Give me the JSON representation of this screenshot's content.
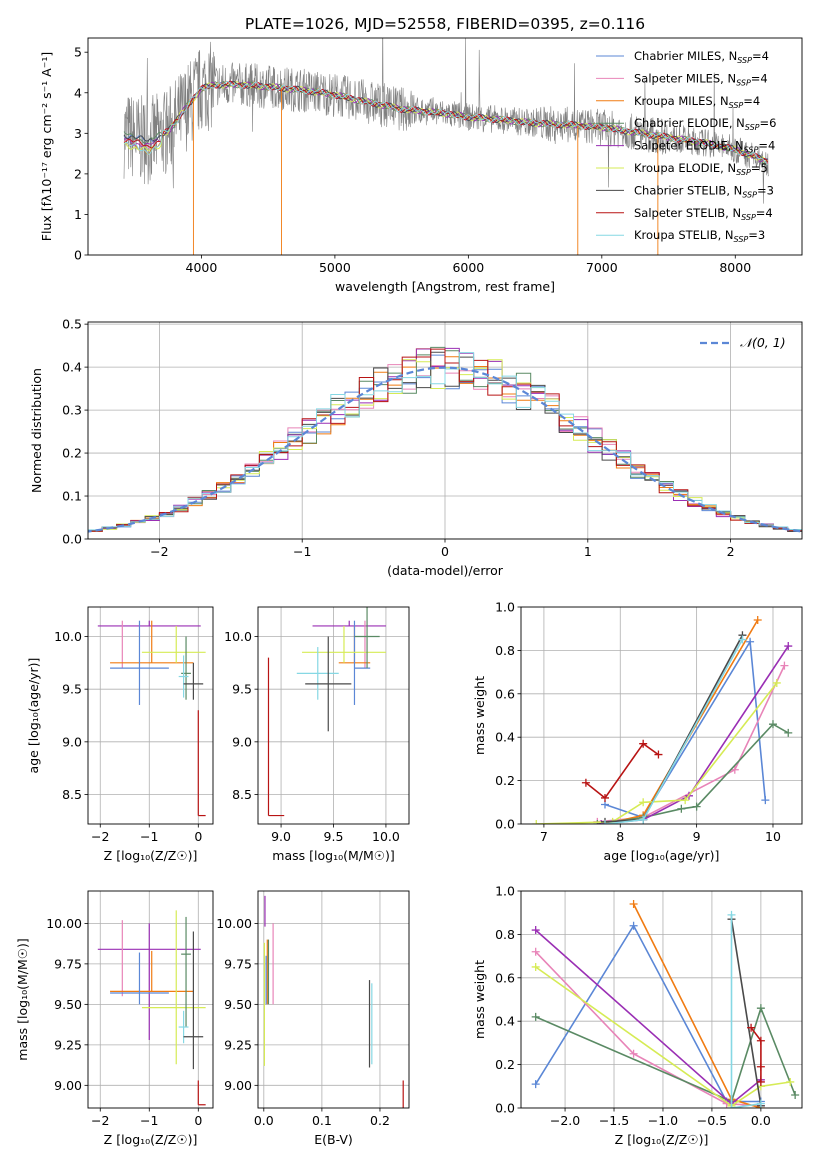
{
  "title": "PLATE=1026, MJD=52558, FIBERID=0395, z=0.116",
  "colors": {
    "chabrier_miles": "#5b87d6",
    "salpeter_miles": "#e884b8",
    "kroupa_miles": "#f07b12",
    "chabrier_elodie": "#5a8a64",
    "salpeter_elodie": "#9a2fb4",
    "kroupa_elodie": "#d6eb55",
    "chabrier_stelib": "#4a4a4a",
    "salpeter_stelib": "#b81414",
    "kroupa_stelib": "#86d8e4",
    "data": "#808080",
    "normal": "#5b87d6"
  },
  "chart_data": [
    {
      "id": "spectrum",
      "type": "line",
      "xlabel": "wavelength [Angstrom, rest frame]",
      "ylabel": "Flux [fλ10⁻¹⁷ erg cm⁻² s⁻¹ A⁻¹]",
      "xlim": [
        3150,
        8500
      ],
      "ylim": [
        0,
        5.35
      ],
      "xticks": [
        4000,
        5000,
        6000,
        7000,
        8000
      ],
      "yticks": [
        0,
        1,
        2,
        3,
        4,
        5
      ],
      "grid": false,
      "legend_position": "top-right",
      "legend": [
        {
          "pre": "Chabrier MILES, N",
          "sub": "SSP",
          "post": "=4",
          "color": "#5b87d6"
        },
        {
          "pre": "Salpeter MILES, N",
          "sub": "SSP",
          "post": "=4",
          "color": "#e884b8"
        },
        {
          "pre": "Kroupa MILES, N",
          "sub": "SSP",
          "post": "=4",
          "color": "#f07b12"
        },
        {
          "pre": "Chabrier ELODIE, N",
          "sub": "SSP",
          "post": "=6",
          "color": "#5a8a64"
        },
        {
          "pre": "Salpeter ELODIE, N",
          "sub": "SSP",
          "post": "=4",
          "color": "#9a2fb4"
        },
        {
          "pre": "Kroupa ELODIE, N",
          "sub": "SSP",
          "post": "=5",
          "color": "#d6eb55"
        },
        {
          "pre": "Chabrier STELIB, N",
          "sub": "SSP",
          "post": "=3",
          "color": "#4a4a4a"
        },
        {
          "pre": "Salpeter STELIB, N",
          "sub": "SSP",
          "post": "=4",
          "color": "#b81414"
        },
        {
          "pre": "Kroupa STELIB, N",
          "sub": "SSP",
          "post": "=3",
          "color": "#86d8e4"
        }
      ],
      "model_continuum": {
        "x": [
          3400,
          3600,
          3750,
          3900,
          4000,
          4100,
          4300,
          4500,
          4800,
          5000,
          5200,
          5500,
          5800,
          6000,
          6200,
          6500,
          6800,
          7000,
          7200,
          7500,
          7800,
          8000,
          8250
        ],
        "y": [
          3.0,
          2.8,
          3.05,
          3.7,
          4.1,
          4.2,
          4.2,
          4.15,
          4.05,
          3.95,
          3.8,
          3.6,
          3.5,
          3.4,
          3.35,
          3.25,
          3.2,
          3.15,
          3.05,
          2.9,
          2.75,
          2.6,
          2.3
        ]
      },
      "model_drops": [
        3940,
        4600,
        6820,
        7420
      ]
    },
    {
      "id": "residuals",
      "type": "line",
      "xlabel": "(data-model)/error",
      "ylabel": "Normed distribution",
      "xlim": [
        -2.5,
        2.5
      ],
      "ylim": [
        0,
        0.505
      ],
      "xticks": [
        -2,
        -1,
        0,
        1,
        2
      ],
      "yticks": [
        0.0,
        0.1,
        0.2,
        0.3,
        0.4,
        0.5
      ],
      "grid": true,
      "legend_position": "top-right",
      "legend": [
        {
          "label": "𝒩(0, 1)",
          "style": "dashed",
          "color": "#5b87d6"
        }
      ],
      "normal": {
        "mean": 0,
        "sigma": 1
      },
      "histogram_bin_width": 0.1
    },
    {
      "id": "age-vs-Z",
      "type": "scatter",
      "xlabel": "Z [log₁₀(Z/Z☉)]",
      "ylabel": "age  [log₁₀(age/yr)]",
      "xlim": [
        -2.25,
        0.3
      ],
      "ylim": [
        8.22,
        10.28
      ],
      "xticks": [
        -2,
        -1,
        0
      ],
      "yticks": [
        8.5,
        9.0,
        9.5,
        10.0
      ],
      "grid": true,
      "series": [
        {
          "color": "#9a2fb4",
          "x": -1.0,
          "xerr": [
            1.05,
            1.05
          ],
          "y": 10.1,
          "yerr": [
            0.0,
            0.05
          ]
        },
        {
          "color": "#e884b8",
          "x": -1.55,
          "xerr": [
            0.0,
            0.0
          ],
          "y": 9.95,
          "yerr": [
            0.25,
            0.2
          ]
        },
        {
          "color": "#f07b12",
          "x": -0.95,
          "xerr": [
            0.85,
            0.85
          ],
          "y": 9.75,
          "yerr": [
            0.0,
            0.4
          ]
        },
        {
          "color": "#5b87d6",
          "x": -1.2,
          "xerr": [
            0.6,
            0.6
          ],
          "y": 9.7,
          "yerr": [
            0.35,
            0.45
          ]
        },
        {
          "color": "#d6eb55",
          "x": -0.45,
          "xerr": [
            0.7,
            0.6
          ],
          "y": 9.85,
          "yerr": [
            0.1,
            0.25
          ]
        },
        {
          "color": "#5a8a64",
          "x": -0.25,
          "xerr": [
            0.1,
            0.1
          ],
          "y": 9.65,
          "yerr": [
            0.25,
            0.35
          ]
        },
        {
          "color": "#86d8e4",
          "x": -0.3,
          "xerr": [
            0.1,
            0.1
          ],
          "y": 9.62,
          "yerr": [
            0.2,
            0.2
          ]
        },
        {
          "color": "#4a4a4a",
          "x": -0.1,
          "xerr": [
            0.2,
            0.2
          ],
          "y": 9.55,
          "yerr": [
            0.15,
            0.2
          ]
        },
        {
          "color": "#b81414",
          "x": 0.0,
          "xerr": [
            0.0,
            0.15
          ],
          "y": 8.3,
          "yerr": [
            0.0,
            1.0
          ]
        }
      ]
    },
    {
      "id": "age-vs-mass",
      "type": "scatter",
      "xlabel": "mass [log₁₀(M/M☉)]",
      "ylabel": "",
      "xlim": [
        8.78,
        10.22
      ],
      "ylim": [
        8.22,
        10.28
      ],
      "xticks": [
        9.0,
        9.5,
        10.0
      ],
      "yticks": [
        8.5,
        9.0,
        9.5,
        10.0
      ],
      "grid": true,
      "series": [
        {
          "color": "#9a2fb4",
          "x": 9.65,
          "xerr": [
            0.35,
            0.35
          ],
          "y": 10.1,
          "yerr": [
            0.0,
            0.05
          ]
        },
        {
          "color": "#e884b8",
          "x": 9.8,
          "xerr": [
            0.0,
            0.0
          ],
          "y": 9.95,
          "yerr": [
            0.25,
            0.2
          ]
        },
        {
          "color": "#f07b12",
          "x": 9.7,
          "xerr": [
            0.15,
            0.15
          ],
          "y": 9.75,
          "yerr": [
            0.0,
            0.35
          ]
        },
        {
          "color": "#5b87d6",
          "x": 9.7,
          "xerr": [
            0.0,
            0.15
          ],
          "y": 9.7,
          "yerr": [
            0.35,
            0.45
          ]
        },
        {
          "color": "#d6eb55",
          "x": 9.6,
          "xerr": [
            0.4,
            0.4
          ],
          "y": 9.85,
          "yerr": [
            0.1,
            0.25
          ]
        },
        {
          "color": "#5a8a64",
          "x": 9.82,
          "xerr": [
            0.12,
            0.12
          ],
          "y": 10.0,
          "yerr": [
            0.3,
            0.3
          ]
        },
        {
          "color": "#86d8e4",
          "x": 9.35,
          "xerr": [
            0.2,
            0.2
          ],
          "y": 9.65,
          "yerr": [
            0.25,
            0.25
          ]
        },
        {
          "color": "#4a4a4a",
          "x": 9.45,
          "xerr": [
            0.22,
            0.22
          ],
          "y": 9.55,
          "yerr": [
            0.45,
            0.45
          ]
        },
        {
          "color": "#b81414",
          "x": 8.88,
          "xerr": [
            0.0,
            0.15
          ],
          "y": 8.3,
          "yerr": [
            0.0,
            1.5
          ]
        }
      ]
    },
    {
      "id": "weight-vs-age",
      "type": "line",
      "xlabel": "age  [log₁₀(age/yr)]",
      "ylabel": "mass weight",
      "xlim": [
        6.7,
        10.38
      ],
      "ylim": [
        0.0,
        1.0
      ],
      "xticks": [
        7,
        8,
        9,
        10
      ],
      "yticks": [
        0.0,
        0.2,
        0.4,
        0.6,
        0.8,
        1.0
      ],
      "grid": true,
      "series": [
        {
          "color": "#5b87d6",
          "x": [
            7.8,
            8.3,
            9.7,
            9.9
          ],
          "y": [
            0.09,
            0.03,
            0.84,
            0.11
          ]
        },
        {
          "color": "#e884b8",
          "x": [
            7.7,
            8.3,
            9.5,
            10.15
          ],
          "y": [
            0.01,
            0.03,
            0.25,
            0.73
          ]
        },
        {
          "color": "#f07b12",
          "x": [
            7.8,
            8.3,
            9.8
          ],
          "y": [
            0.0,
            0.04,
            0.94
          ]
        },
        {
          "color": "#5a8a64",
          "x": [
            7.7,
            8.3,
            8.8,
            9.0,
            10.0,
            10.2
          ],
          "y": [
            0.0,
            0.03,
            0.07,
            0.08,
            0.46,
            0.42
          ]
        },
        {
          "color": "#9a2fb4",
          "x": [
            7.75,
            8.3,
            8.9,
            10.2
          ],
          "y": [
            0.0,
            0.02,
            0.13,
            0.82
          ]
        },
        {
          "color": "#d6eb55",
          "x": [
            6.9,
            7.9,
            8.3,
            8.85,
            10.05
          ],
          "y": [
            0.0,
            0.01,
            0.1,
            0.11,
            0.65
          ]
        },
        {
          "color": "#4a4a4a",
          "x": [
            7.8,
            8.3,
            9.6
          ],
          "y": [
            0.01,
            0.02,
            0.87
          ]
        },
        {
          "color": "#b81414",
          "x": [
            7.55,
            7.8,
            8.3,
            8.5
          ],
          "y": [
            0.19,
            0.12,
            0.37,
            0.32
          ]
        },
        {
          "color": "#86d8e4",
          "x": [
            7.8,
            8.3,
            9.6
          ],
          "y": [
            0.0,
            0.02,
            0.85
          ]
        }
      ]
    },
    {
      "id": "mass-vs-Z",
      "type": "scatter",
      "xlabel": "Z [log₁₀(Z/Z☉)]",
      "ylabel": "mass [log₁₀(M/M☉)]",
      "xlim": [
        -2.25,
        0.3
      ],
      "ylim": [
        8.86,
        10.2
      ],
      "xticks": [
        -2,
        -1,
        0
      ],
      "yticks": [
        9.0,
        9.25,
        9.5,
        9.75,
        10.0
      ],
      "grid": true,
      "series": [
        {
          "color": "#9a2fb4",
          "x": -1.0,
          "xerr": [
            1.05,
            1.05
          ],
          "y": 9.84,
          "yerr": [
            0.56,
            0.16
          ]
        },
        {
          "color": "#e884b8",
          "x": -1.55,
          "xerr": [
            0.0,
            0.0
          ],
          "y": 9.75,
          "yerr": [
            0.2,
            0.27
          ]
        },
        {
          "color": "#f07b12",
          "x": -0.95,
          "xerr": [
            0.85,
            0.85
          ],
          "y": 9.58,
          "yerr": [
            0.0,
            0.25
          ]
        },
        {
          "color": "#5b87d6",
          "x": -1.2,
          "xerr": [
            0.6,
            0.6
          ],
          "y": 9.57,
          "yerr": [
            0.07,
            0.25
          ]
        },
        {
          "color": "#d6eb55",
          "x": -0.45,
          "xerr": [
            0.7,
            0.6
          ],
          "y": 9.48,
          "yerr": [
            0.35,
            0.6
          ]
        },
        {
          "color": "#5a8a64",
          "x": -0.25,
          "xerr": [
            0.1,
            0.1
          ],
          "y": 9.81,
          "yerr": [
            0.45,
            0.23
          ]
        },
        {
          "color": "#86d8e4",
          "x": -0.3,
          "xerr": [
            0.1,
            0.1
          ],
          "y": 9.36,
          "yerr": [
            0.1,
            0.1
          ]
        },
        {
          "color": "#4a4a4a",
          "x": -0.1,
          "xerr": [
            0.2,
            0.2
          ],
          "y": 9.3,
          "yerr": [
            0.2,
            0.65
          ]
        },
        {
          "color": "#b81414",
          "x": 0.0,
          "xerr": [
            0.0,
            0.15
          ],
          "y": 8.88,
          "yerr": [
            0.0,
            0.15
          ]
        }
      ]
    },
    {
      "id": "mass-vs-ebv",
      "type": "scatter",
      "xlabel": "E(B-V)",
      "ylabel": "",
      "xlim": [
        -0.01,
        0.25
      ],
      "ylim": [
        8.86,
        10.2
      ],
      "xticks": [
        0.0,
        0.1,
        0.2
      ],
      "yticks": [
        9.0,
        9.25,
        9.5,
        9.75,
        10.0
      ],
      "grid": true,
      "series": [
        {
          "color": "#9a2fb4",
          "x": 0.002,
          "xerr": [
            0.0,
            0.0
          ],
          "y": 10.05,
          "yerr": [
            0.07,
            0.12
          ]
        },
        {
          "color": "#e884b8",
          "x": 0.016,
          "xerr": [
            0.0,
            0.0
          ],
          "y": 9.75,
          "yerr": [
            0.25,
            0.25
          ]
        },
        {
          "color": "#f07b12",
          "x": 0.006,
          "xerr": [
            0.0,
            0.0
          ],
          "y": 9.7,
          "yerr": [
            0.2,
            0.2
          ]
        },
        {
          "color": "#5b87d6",
          "x": 0.004,
          "xerr": [
            0.0,
            0.0
          ],
          "y": 9.65,
          "yerr": [
            0.15,
            0.15
          ]
        },
        {
          "color": "#d6eb55",
          "x": 0.001,
          "xerr": [
            0.0,
            0.0
          ],
          "y": 9.5,
          "yerr": [
            0.38,
            0.38
          ]
        },
        {
          "color": "#5a8a64",
          "x": 0.008,
          "xerr": [
            0.0,
            0.0
          ],
          "y": 9.7,
          "yerr": [
            0.2,
            0.2
          ]
        },
        {
          "color": "#86d8e4",
          "x": 0.186,
          "xerr": [
            0.0,
            0.0
          ],
          "y": 9.38,
          "yerr": [
            0.25,
            0.25
          ]
        },
        {
          "color": "#4a4a4a",
          "x": 0.182,
          "xerr": [
            0.0,
            0.0
          ],
          "y": 9.38,
          "yerr": [
            0.27,
            0.27
          ]
        },
        {
          "color": "#b81414",
          "x": 0.24,
          "xerr": [
            0.0,
            0.0
          ],
          "y": 8.98,
          "yerr": [
            0.12,
            0.05
          ]
        }
      ]
    },
    {
      "id": "weight-vs-Z",
      "type": "line",
      "xlabel": "Z [log₁₀(Z/Z☉)]",
      "ylabel": "mass weight",
      "xlim": [
        -2.45,
        0.42
      ],
      "ylim": [
        0.0,
        1.0
      ],
      "xticks": [
        -2.0,
        -1.5,
        -1.0,
        -0.5,
        0.0
      ],
      "yticks": [
        0.0,
        0.2,
        0.4,
        0.6,
        0.8,
        1.0
      ],
      "grid": true,
      "series": [
        {
          "color": "#5b87d6",
          "x": [
            -2.3,
            -1.3,
            -0.35,
            0.0
          ],
          "y": [
            0.11,
            0.84,
            0.03,
            0.03
          ]
        },
        {
          "color": "#e884b8",
          "x": [
            -2.3,
            -1.3,
            -0.35,
            0.0
          ],
          "y": [
            0.72,
            0.25,
            0.02,
            0.01
          ]
        },
        {
          "color": "#f07b12",
          "x": [
            -1.3,
            -0.3,
            0.0
          ],
          "y": [
            0.94,
            0.04,
            0.0
          ]
        },
        {
          "color": "#5a8a64",
          "x": [
            -2.3,
            -0.3,
            0.0,
            0.35
          ],
          "y": [
            0.42,
            0.03,
            0.46,
            0.06
          ]
        },
        {
          "color": "#9a2fb4",
          "x": [
            -2.3,
            -0.3,
            0.0
          ],
          "y": [
            0.82,
            0.02,
            0.13
          ]
        },
        {
          "color": "#d6eb55",
          "x": [
            -2.3,
            -0.3,
            0.0,
            0.3
          ],
          "y": [
            0.65,
            0.01,
            0.1,
            0.12
          ]
        },
        {
          "color": "#4a4a4a",
          "x": [
            -0.3,
            0.0
          ],
          "y": [
            0.87,
            0.01
          ]
        },
        {
          "color": "#b81414",
          "x": [
            -0.1,
            0.0,
            0.0,
            0.0
          ],
          "y": [
            0.37,
            0.31,
            0.19,
            0.12
          ]
        },
        {
          "color": "#86d8e4",
          "x": [
            -0.3,
            -0.3,
            0.0
          ],
          "y": [
            0.89,
            0.0,
            0.02
          ]
        }
      ]
    }
  ]
}
